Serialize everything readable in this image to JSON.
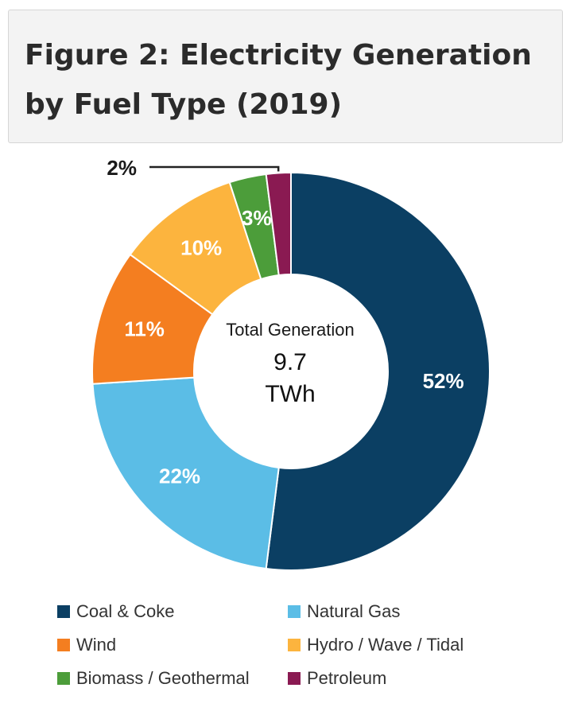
{
  "chart_data": {
    "type": "pie",
    "title": "Figure 2: Electricity Generation by Fuel Type (2019)",
    "title_lines": [
      "Figure 2: Electricity Generation",
      "by Fuel Type (2019)"
    ],
    "center_caption": "Total Generation",
    "center_value_line1": "9.7",
    "center_value_line2": "TWh",
    "series": [
      {
        "name": "Coal & Coke",
        "value": 52,
        "label": "52%",
        "color": "#0b3f63"
      },
      {
        "name": "Natural Gas",
        "value": 22,
        "label": "22%",
        "color": "#5bbde6"
      },
      {
        "name": "Wind",
        "value": 11,
        "label": "11%",
        "color": "#f47e20"
      },
      {
        "name": "Hydro / Wave / Tidal",
        "value": 10,
        "label": "10%",
        "color": "#fcb43e"
      },
      {
        "name": "Biomass / Geothermal",
        "value": 3,
        "label": "3%",
        "color": "#4c9d3a"
      },
      {
        "name": "Petroleum",
        "value": 2,
        "label": "2%",
        "color": "#8a1a52"
      }
    ],
    "legend_order": [
      "Coal & Coke",
      "Natural Gas",
      "Wind",
      "Hydro / Wave / Tidal",
      "Biomass / Geothermal",
      "Petroleum"
    ]
  }
}
